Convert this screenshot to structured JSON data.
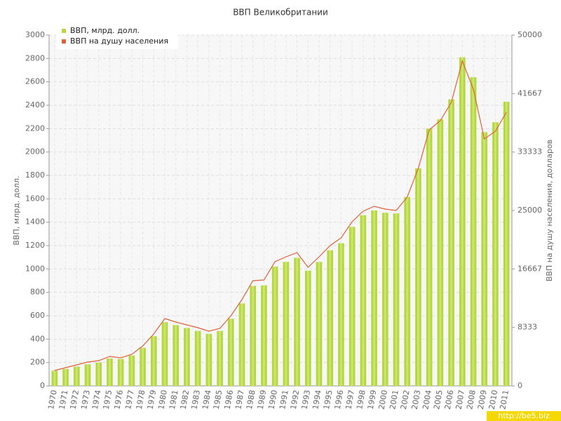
{
  "chart_data": {
    "type": "bar+line",
    "title": "ВВП Великобритании",
    "ylabel": "ВВП, млрд. долл.",
    "y2label": "ВВП на душу населения, долларов",
    "watermark": "http://be5.biz",
    "categories": [
      "1970",
      "1971",
      "1972",
      "1973",
      "1974",
      "1975",
      "1976",
      "1977",
      "1978",
      "1979",
      "1980",
      "1981",
      "1982",
      "1983",
      "1984",
      "1985",
      "1986",
      "1987",
      "1988",
      "1989",
      "1990",
      "1991",
      "1992",
      "1993",
      "1994",
      "1995",
      "1996",
      "1997",
      "1998",
      "1999",
      "2000",
      "2001",
      "2002",
      "2003",
      "2004",
      "2005",
      "2006",
      "2007",
      "2008",
      "2009",
      "2010",
      "2011"
    ],
    "series": [
      {
        "name": "ВВП, млрд. долл.",
        "type": "bar",
        "color": "#b5d93a",
        "axis": "y",
        "values": [
          130,
          145,
          165,
          185,
          200,
          235,
          230,
          260,
          325,
          425,
          545,
          520,
          495,
          470,
          445,
          470,
          575,
          705,
          855,
          860,
          1020,
          1060,
          1095,
          985,
          1060,
          1160,
          1220,
          1360,
          1460,
          1500,
          1480,
          1475,
          1615,
          1860,
          2200,
          2280,
          2450,
          2810,
          2640,
          2170,
          2255,
          2430
        ]
      },
      {
        "name": "ВВП на душу населения",
        "type": "line",
        "color": "#e0603a",
        "axis": "y2",
        "values": [
          2200,
          2600,
          3000,
          3400,
          3600,
          4200,
          4000,
          4500,
          5700,
          7400,
          9600,
          9100,
          8700,
          8300,
          7800,
          8200,
          10000,
          12300,
          15000,
          15100,
          17700,
          18400,
          19000,
          16900,
          18400,
          20000,
          21100,
          23400,
          24900,
          25600,
          25200,
          25000,
          26900,
          31000,
          36500,
          37800,
          40400,
          46300,
          42300,
          35200,
          36300,
          39000
        ]
      }
    ],
    "ylim": [
      0,
      3000
    ],
    "yticks": [
      0,
      200,
      400,
      600,
      800,
      1000,
      1200,
      1400,
      1600,
      1800,
      2000,
      2200,
      2400,
      2600,
      2800,
      3000
    ],
    "y2lim": [
      0,
      50000
    ],
    "y2ticks": [
      0,
      8333,
      16667,
      25000,
      33333,
      41667,
      50000
    ],
    "grid": true,
    "legend": "top-left"
  }
}
